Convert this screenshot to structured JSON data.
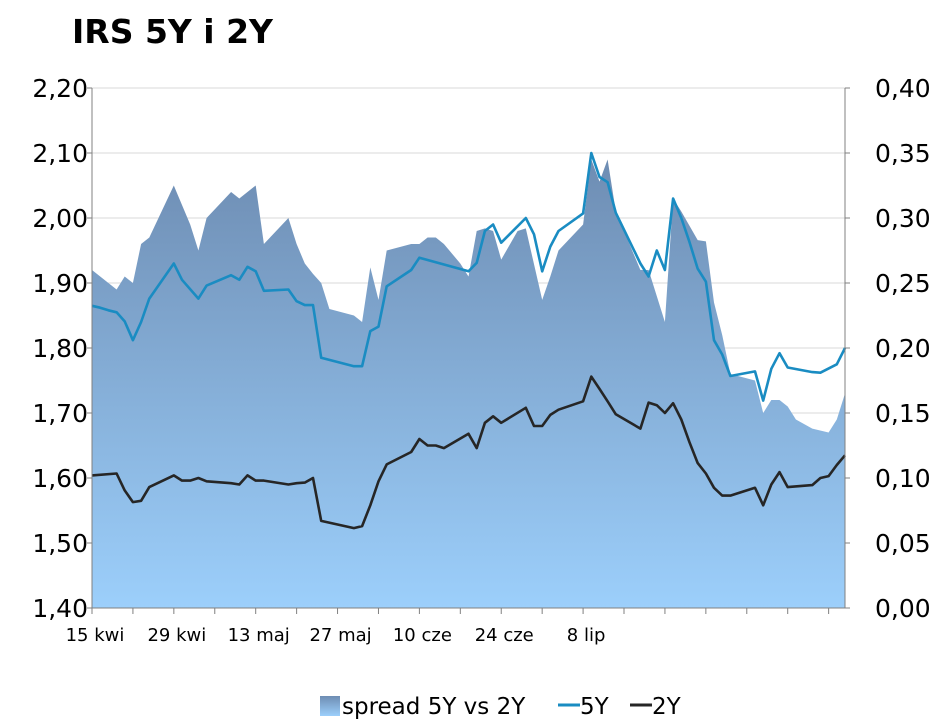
{
  "chart_data": {
    "type": "area",
    "title": "IRS 5Y i 2Y",
    "x_tick_labels": [
      "15 kwi",
      "29 kwi",
      "13 maj",
      "27 maj",
      "10 cze",
      "24 cze",
      "8 lip"
    ],
    "left_axis": {
      "ylim": [
        1.4,
        2.2
      ],
      "ticks": [
        "1,40",
        "1,50",
        "1,60",
        "1,70",
        "1,80",
        "1,90",
        "2,00",
        "2,10",
        "2,20"
      ]
    },
    "right_axis": {
      "ylim": [
        0.0,
        0.4
      ],
      "ticks": [
        "0,00",
        "0,05",
        "0,10",
        "0,15",
        "0,20",
        "0,25",
        "0,30",
        "0,35",
        "0,40"
      ]
    },
    "grid": true,
    "legend_position": "bottom",
    "colors": {
      "spread": "#7ba3cf",
      "spread_light": "#9dcef8",
      "spread_dark": "#6f8fb4",
      "line_5y": "#1a8cc2",
      "line_2y": "#262626"
    },
    "x": [
      0,
      1,
      2,
      3,
      4,
      5,
      6,
      7,
      8,
      9,
      10,
      11,
      12,
      13,
      14,
      15,
      16,
      17,
      18,
      19,
      20,
      21,
      22,
      23,
      24,
      25,
      26,
      27,
      28,
      29,
      30,
      31,
      32,
      33,
      34,
      35,
      36,
      37,
      38,
      39,
      40,
      41,
      42,
      43,
      44,
      45,
      46,
      47,
      48,
      49,
      50,
      51,
      52,
      53,
      54,
      55,
      56,
      57,
      58,
      59,
      60,
      61,
      62,
      63,
      64,
      65,
      66,
      67,
      68,
      69,
      70,
      71,
      72,
      73,
      74,
      75,
      76,
      77,
      78,
      79,
      80,
      81,
      82,
      83,
      84,
      85,
      86,
      87,
      88,
      89,
      90,
      91,
      92
    ],
    "series": [
      {
        "name": "spread 5Y vs 2Y",
        "axis": "right",
        "type": "area",
        "values": [
          [
            0,
            0.26
          ],
          [
            3,
            0.245
          ],
          [
            4,
            0.255
          ],
          [
            5,
            0.25
          ],
          [
            6,
            0.28
          ],
          [
            7,
            0.285
          ],
          [
            10,
            0.325
          ],
          [
            12,
            0.295
          ],
          [
            13,
            0.275
          ],
          [
            14,
            0.3
          ],
          [
            17,
            0.32
          ],
          [
            18,
            0.315
          ],
          [
            20,
            0.325
          ],
          [
            21,
            0.28
          ],
          [
            24,
            0.3
          ],
          [
            25,
            0.28
          ],
          [
            26,
            0.265
          ],
          [
            27,
            0.257
          ],
          [
            28,
            0.25
          ],
          [
            29,
            0.23
          ],
          [
            32,
            0.225
          ],
          [
            33,
            0.22
          ],
          [
            34,
            0.262
          ],
          [
            35,
            0.237
          ],
          [
            36,
            0.275
          ],
          [
            39,
            0.28
          ],
          [
            40,
            0.28
          ],
          [
            41,
            0.285
          ],
          [
            42,
            0.285
          ],
          [
            43,
            0.28
          ],
          [
            45,
            0.265
          ],
          [
            46,
            0.255
          ],
          [
            47,
            0.29
          ],
          [
            48,
            0.292
          ],
          [
            49,
            0.29
          ],
          [
            50,
            0.268
          ],
          [
            52,
            0.29
          ],
          [
            53,
            0.292
          ],
          [
            55,
            0.237
          ],
          [
            56,
            0.255
          ],
          [
            57,
            0.275
          ],
          [
            60,
            0.295
          ],
          [
            61,
            0.345
          ],
          [
            62,
            0.328
          ],
          [
            63,
            0.345
          ],
          [
            64,
            0.305
          ],
          [
            67,
            0.26
          ],
          [
            68,
            0.26
          ],
          [
            70,
            0.22
          ],
          [
            71,
            0.315
          ],
          [
            72,
            0.305
          ],
          [
            74,
            0.283
          ],
          [
            75,
            0.282
          ],
          [
            76,
            0.235
          ],
          [
            77,
            0.21
          ],
          [
            78,
            0.18
          ],
          [
            81,
            0.175
          ],
          [
            82,
            0.15
          ],
          [
            83,
            0.16
          ],
          [
            84,
            0.16
          ],
          [
            85,
            0.155
          ],
          [
            86,
            0.145
          ],
          [
            88,
            0.138
          ],
          [
            90,
            0.135
          ],
          [
            91,
            0.145
          ],
          [
            92,
            0.165
          ]
        ]
      },
      {
        "name": "5Y",
        "axis": "left",
        "type": "line",
        "values": [
          [
            0,
            1.865
          ],
          [
            1,
            1.862
          ],
          [
            2,
            1.858
          ],
          [
            3,
            1.855
          ],
          [
            4,
            1.841
          ],
          [
            5,
            1.812
          ],
          [
            6,
            1.84
          ],
          [
            7,
            1.876
          ],
          [
            10,
            1.93
          ],
          [
            11,
            1.905
          ],
          [
            13,
            1.876
          ],
          [
            14,
            1.896
          ],
          [
            17,
            1.912
          ],
          [
            18,
            1.905
          ],
          [
            19,
            1.925
          ],
          [
            20,
            1.918
          ],
          [
            21,
            1.888
          ],
          [
            24,
            1.89
          ],
          [
            25,
            1.872
          ],
          [
            26,
            1.866
          ],
          [
            27,
            1.866
          ],
          [
            28,
            1.785
          ],
          [
            32,
            1.772
          ],
          [
            33,
            1.772
          ],
          [
            34,
            1.826
          ],
          [
            35,
            1.833
          ],
          [
            36,
            1.895
          ],
          [
            39,
            1.92
          ],
          [
            40,
            1.939
          ],
          [
            42,
            1.932
          ],
          [
            46,
            1.918
          ],
          [
            47,
            1.931
          ],
          [
            48,
            1.98
          ],
          [
            49,
            1.99
          ],
          [
            50,
            1.962
          ],
          [
            53,
            2.0
          ],
          [
            54,
            1.975
          ],
          [
            55,
            1.918
          ],
          [
            56,
            1.956
          ],
          [
            57,
            1.98
          ],
          [
            60,
            2.007
          ],
          [
            61,
            2.1
          ],
          [
            62,
            2.063
          ],
          [
            63,
            2.055
          ],
          [
            64,
            2.008
          ],
          [
            67,
            1.93
          ],
          [
            68,
            1.91
          ],
          [
            69,
            1.95
          ],
          [
            70,
            1.92
          ],
          [
            71,
            2.03
          ],
          [
            72,
            2.0
          ],
          [
            73,
            1.963
          ],
          [
            74,
            1.922
          ],
          [
            75,
            1.902
          ],
          [
            76,
            1.812
          ],
          [
            77,
            1.79
          ],
          [
            78,
            1.757
          ],
          [
            81,
            1.764
          ],
          [
            82,
            1.719
          ],
          [
            83,
            1.768
          ],
          [
            84,
            1.792
          ],
          [
            85,
            1.77
          ],
          [
            88,
            1.763
          ],
          [
            89,
            1.762
          ],
          [
            91,
            1.775
          ],
          [
            92,
            1.8
          ]
        ]
      },
      {
        "name": "2Y",
        "axis": "left",
        "type": "line",
        "values": [
          [
            0,
            1.604
          ],
          [
            3,
            1.607
          ],
          [
            4,
            1.581
          ],
          [
            5,
            1.563
          ],
          [
            6,
            1.565
          ],
          [
            7,
            1.586
          ],
          [
            10,
            1.604
          ],
          [
            11,
            1.596
          ],
          [
            12,
            1.596
          ],
          [
            13,
            1.6
          ],
          [
            14,
            1.595
          ],
          [
            17,
            1.592
          ],
          [
            18,
            1.59
          ],
          [
            19,
            1.604
          ],
          [
            20,
            1.596
          ],
          [
            21,
            1.596
          ],
          [
            24,
            1.59
          ],
          [
            25,
            1.592
          ],
          [
            26,
            1.593
          ],
          [
            27,
            1.6
          ],
          [
            28,
            1.534
          ],
          [
            32,
            1.523
          ],
          [
            33,
            1.526
          ],
          [
            34,
            1.558
          ],
          [
            35,
            1.595
          ],
          [
            36,
            1.621
          ],
          [
            39,
            1.64
          ],
          [
            40,
            1.66
          ],
          [
            41,
            1.65
          ],
          [
            42,
            1.65
          ],
          [
            43,
            1.646
          ],
          [
            46,
            1.668
          ],
          [
            47,
            1.646
          ],
          [
            48,
            1.685
          ],
          [
            49,
            1.695
          ],
          [
            50,
            1.685
          ],
          [
            53,
            1.708
          ],
          [
            54,
            1.68
          ],
          [
            55,
            1.68
          ],
          [
            56,
            1.697
          ],
          [
            57,
            1.705
          ],
          [
            60,
            1.718
          ],
          [
            61,
            1.756
          ],
          [
            62,
            1.737
          ],
          [
            63,
            1.718
          ],
          [
            64,
            1.698
          ],
          [
            67,
            1.676
          ],
          [
            68,
            1.716
          ],
          [
            69,
            1.712
          ],
          [
            70,
            1.7
          ],
          [
            71,
            1.715
          ],
          [
            72,
            1.69
          ],
          [
            73,
            1.655
          ],
          [
            74,
            1.623
          ],
          [
            75,
            1.607
          ],
          [
            76,
            1.585
          ],
          [
            77,
            1.573
          ],
          [
            78,
            1.573
          ],
          [
            81,
            1.585
          ],
          [
            82,
            1.558
          ],
          [
            83,
            1.59
          ],
          [
            84,
            1.609
          ],
          [
            85,
            1.586
          ],
          [
            88,
            1.589
          ],
          [
            89,
            1.6
          ],
          [
            90,
            1.603
          ],
          [
            91,
            1.62
          ],
          [
            92,
            1.635
          ]
        ]
      }
    ]
  }
}
